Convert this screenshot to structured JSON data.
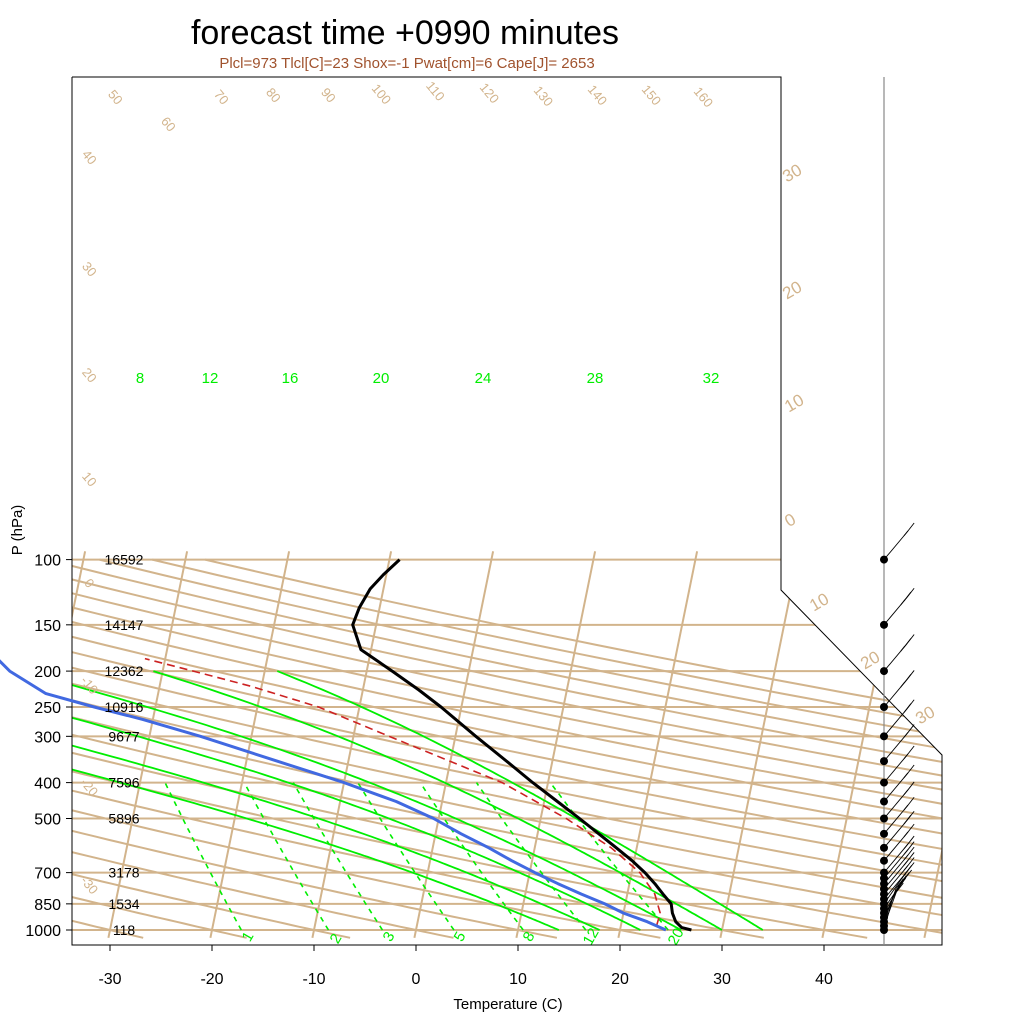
{
  "title": "forecast time +0990 minutes",
  "subtitle": "Plcl=973 Tlcl[C]=23 Shox=-1 Pwat[cm]=6 Cape[J]= 2653",
  "chart_data": {
    "type": "line",
    "xlabel": "Temperature (C)",
    "ylabel": "P (hPa)",
    "x_ticks": [
      -30,
      -20,
      -10,
      0,
      10,
      20,
      30,
      40
    ],
    "y_ticks": [
      100,
      150,
      200,
      250,
      300,
      400,
      500,
      700,
      850,
      1000
    ],
    "heights": [
      {
        "p": 100,
        "label": "16592"
      },
      {
        "p": 150,
        "label": "14147"
      },
      {
        "p": 200,
        "label": "12362"
      },
      {
        "p": 250,
        "label": "10916"
      },
      {
        "p": 300,
        "label": "9677"
      },
      {
        "p": 400,
        "label": "7596"
      },
      {
        "p": 500,
        "label": "5896"
      },
      {
        "p": 700,
        "label": "3178"
      },
      {
        "p": 850,
        "label": "1534"
      },
      {
        "p": 1000,
        "label": "118"
      }
    ],
    "adiabat_labels": [
      "50",
      "60",
      "70",
      "80",
      "90",
      "100",
      "110",
      "120",
      "130",
      "140",
      "150",
      "160"
    ],
    "adiabat_side_labels": [
      "40",
      "30",
      "20",
      "10",
      "0",
      "-10",
      "-20",
      "-30"
    ],
    "isotherm_labels": [
      "30",
      "20",
      "10",
      "0",
      "10",
      "20",
      "30"
    ],
    "mixing_ratio_top_labels": [
      "8",
      "12",
      "16",
      "20",
      "24",
      "28",
      "32"
    ],
    "mixing_ratio_bottom_labels": [
      "1",
      "2",
      "3",
      "5",
      "8",
      "12",
      "20"
    ],
    "temperature_series": [
      {
        "p": 1000,
        "t": 27.0
      },
      {
        "p": 985,
        "t": 26.0
      },
      {
        "p": 950,
        "t": 25.3
      },
      {
        "p": 900,
        "t": 24.8
      },
      {
        "p": 850,
        "t": 24.5
      },
      {
        "p": 800,
        "t": 23.5
      },
      {
        "p": 750,
        "t": 22.5
      },
      {
        "p": 700,
        "t": 21.3
      },
      {
        "p": 650,
        "t": 19.8
      },
      {
        "p": 600,
        "t": 18.0
      },
      {
        "p": 550,
        "t": 16.0
      },
      {
        "p": 500,
        "t": 13.8
      },
      {
        "p": 450,
        "t": 11.3
      },
      {
        "p": 400,
        "t": 8.5
      },
      {
        "p": 350,
        "t": 5.5
      },
      {
        "p": 300,
        "t": 2.0
      },
      {
        "p": 250,
        "t": -2.0
      },
      {
        "p": 225,
        "t": -4.5
      },
      {
        "p": 200,
        "t": -7.5
      },
      {
        "p": 175,
        "t": -11.0
      },
      {
        "p": 150,
        "t": -12.3
      },
      {
        "p": 135,
        "t": -12.0
      },
      {
        "p": 120,
        "t": -11.3
      },
      {
        "p": 110,
        "t": -10.3
      },
      {
        "p": 100,
        "t": -9.0
      }
    ],
    "dewpoint_series": [
      {
        "p": 1000,
        "t": 24.5
      },
      {
        "p": 950,
        "t": 22.5
      },
      {
        "p": 900,
        "t": 20.0
      },
      {
        "p": 850,
        "t": 18.0
      },
      {
        "p": 800,
        "t": 15.5
      },
      {
        "p": 750,
        "t": 13.0
      },
      {
        "p": 700,
        "t": 10.5
      },
      {
        "p": 650,
        "t": 8.0
      },
      {
        "p": 600,
        "t": 5.5
      },
      {
        "p": 550,
        "t": 2.5
      },
      {
        "p": 500,
        "t": -0.5
      },
      {
        "p": 450,
        "t": -4.5
      },
      {
        "p": 400,
        "t": -10.0
      },
      {
        "p": 350,
        "t": -17.0
      },
      {
        "p": 300,
        "t": -25.0
      },
      {
        "p": 270,
        "t": -31.0
      },
      {
        "p": 250,
        "t": -36.0
      },
      {
        "p": 230,
        "t": -41.0
      },
      {
        "p": 200,
        "t": -45.0
      },
      {
        "p": 180,
        "t": -47.0
      },
      {
        "p": 150,
        "t": -51.0
      },
      {
        "p": 130,
        "t": -54.0
      },
      {
        "p": 115,
        "t": -58.0
      },
      {
        "p": 100,
        "t": -62.0
      }
    ],
    "parcel_series": [
      {
        "p": 973,
        "t": 23.5
      },
      {
        "p": 900,
        "t": 23.6
      },
      {
        "p": 800,
        "t": 22.7
      },
      {
        "p": 700,
        "t": 20.8
      },
      {
        "p": 600,
        "t": 17.5
      },
      {
        "p": 500,
        "t": 12.5
      },
      {
        "p": 400,
        "t": 5.5
      },
      {
        "p": 300,
        "t": -6.5
      },
      {
        "p": 250,
        "t": -14.0
      },
      {
        "p": 220,
        "t": -21.0
      },
      {
        "p": 200,
        "t": -27.0
      },
      {
        "p": 185,
        "t": -32.0
      }
    ],
    "wind_barbs": [
      {
        "p": 1000,
        "spd": 10,
        "dir": 165
      },
      {
        "p": 975,
        "spd": 10,
        "dir": 160
      },
      {
        "p": 950,
        "spd": 15,
        "dir": 160
      },
      {
        "p": 925,
        "spd": 15,
        "dir": 155
      },
      {
        "p": 900,
        "spd": 15,
        "dir": 150
      },
      {
        "p": 875,
        "spd": 15,
        "dir": 145
      },
      {
        "p": 850,
        "spd": 15,
        "dir": 145
      },
      {
        "p": 825,
        "spd": 15,
        "dir": 140
      },
      {
        "p": 800,
        "spd": 15,
        "dir": 140
      },
      {
        "p": 775,
        "spd": 15,
        "dir": 140
      },
      {
        "p": 750,
        "spd": 15,
        "dir": 140
      },
      {
        "p": 725,
        "spd": 15,
        "dir": 140
      },
      {
        "p": 700,
        "spd": 15,
        "dir": 140
      },
      {
        "p": 650,
        "spd": 15,
        "dir": 140
      },
      {
        "p": 600,
        "spd": 20,
        "dir": 140
      },
      {
        "p": 550,
        "spd": 15,
        "dir": 140
      },
      {
        "p": 500,
        "spd": 15,
        "dir": 140
      },
      {
        "p": 450,
        "spd": 15,
        "dir": 140
      },
      {
        "p": 400,
        "spd": 15,
        "dir": 140
      },
      {
        "p": 350,
        "spd": 15,
        "dir": 140
      },
      {
        "p": 300,
        "spd": 20,
        "dir": 140
      },
      {
        "p": 250,
        "spd": 25,
        "dir": 140
      },
      {
        "p": 200,
        "spd": 25,
        "dir": 140
      },
      {
        "p": 150,
        "spd": 25,
        "dir": 140
      },
      {
        "p": 100,
        "spd": 15,
        "dir": 140
      }
    ],
    "grid": true
  }
}
